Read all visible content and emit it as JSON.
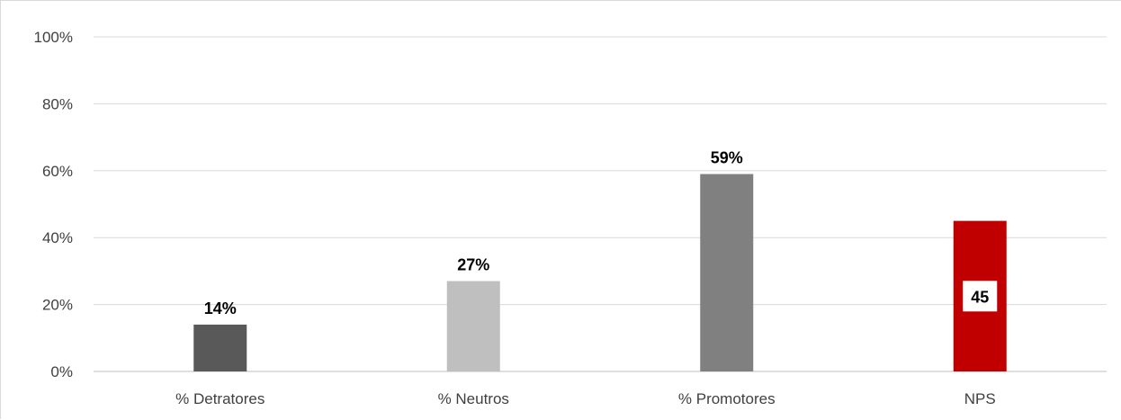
{
  "chart_data": {
    "type": "bar",
    "title": "",
    "xlabel": "",
    "ylabel": "",
    "categories": [
      "% Detratores",
      "% Neutros",
      "% Promotores",
      "NPS"
    ],
    "values": [
      14,
      27,
      59,
      45
    ],
    "data_labels": [
      "14%",
      "27%",
      "59%",
      "45"
    ],
    "colors": [
      "#595959",
      "#bfbfbf",
      "#808080",
      "#c00000"
    ],
    "ylim": [
      0,
      100
    ],
    "yticks": [
      0,
      20,
      40,
      60,
      80,
      100
    ],
    "ytick_labels": [
      "0%",
      "20%",
      "40%",
      "60%",
      "80%",
      "100%"
    ],
    "grid": true,
    "legend": "none"
  }
}
